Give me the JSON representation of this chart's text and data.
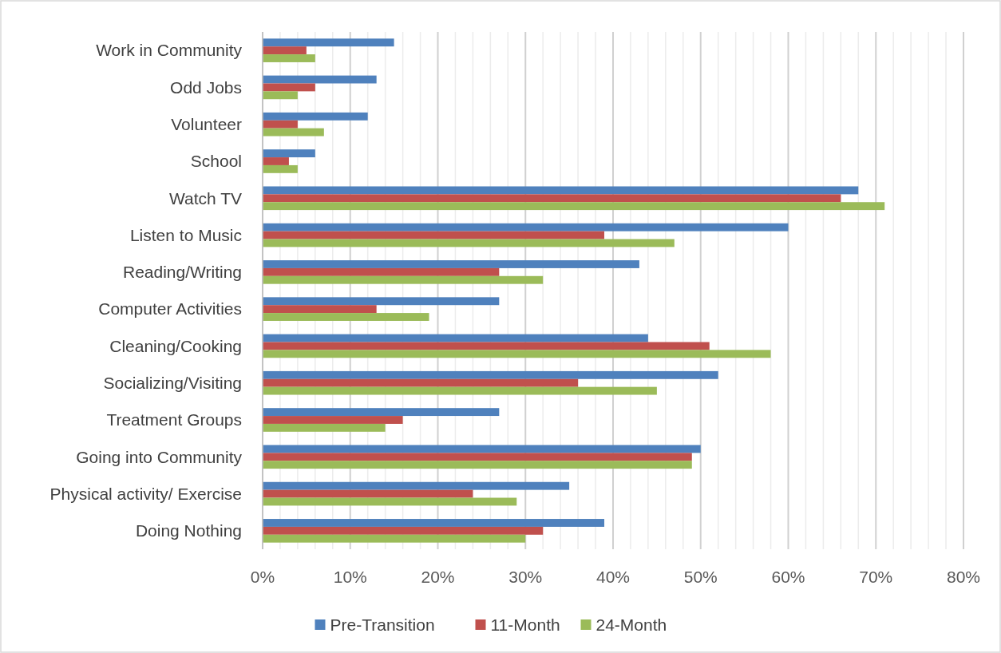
{
  "chart_data": {
    "type": "bar",
    "orientation": "horizontal",
    "categories": [
      "Work in Community",
      "Odd Jobs",
      "Volunteer",
      "School",
      "Watch TV",
      "Listen to Music",
      "Reading/Writing",
      "Computer Activities",
      "Cleaning/Cooking",
      "Socializing/Visiting",
      "Treatment Groups",
      "Going into Community",
      "Physical activity/ Exercise",
      "Doing Nothing"
    ],
    "series": [
      {
        "name": "Pre-Transition",
        "color": "#4f81bd",
        "values": [
          15,
          13,
          12,
          6,
          68,
          60,
          43,
          27,
          44,
          52,
          27,
          50,
          35,
          39
        ]
      },
      {
        "name": "11-Month",
        "color": "#c0504d",
        "values": [
          5,
          6,
          4,
          3,
          66,
          39,
          27,
          13,
          51,
          36,
          16,
          49,
          24,
          32
        ]
      },
      {
        "name": "24-Month",
        "color": "#9bbb59",
        "values": [
          6,
          4,
          7,
          4,
          71,
          47,
          32,
          19,
          58,
          45,
          14,
          49,
          29,
          30
        ]
      }
    ],
    "xlim": [
      0,
      80
    ],
    "xticks": [
      {
        "value": 0,
        "label": "0%"
      },
      {
        "value": 2,
        "label": null
      },
      {
        "value": 4,
        "label": null
      },
      {
        "value": 6,
        "label": null
      },
      {
        "value": 8,
        "label": null
      },
      {
        "value": 10,
        "label": "10%"
      },
      {
        "value": 12,
        "label": null
      },
      {
        "value": 14,
        "label": null
      },
      {
        "value": 16,
        "label": null
      },
      {
        "value": 18,
        "label": null
      },
      {
        "value": 20,
        "label": "20%"
      },
      {
        "value": 22,
        "label": null
      },
      {
        "value": 24,
        "label": null
      },
      {
        "value": 26,
        "label": null
      },
      {
        "value": 28,
        "label": null
      },
      {
        "value": 30,
        "label": "30%"
      },
      {
        "value": 32,
        "label": null
      },
      {
        "value": 34,
        "label": null
      },
      {
        "value": 36,
        "label": null
      },
      {
        "value": 38,
        "label": null
      },
      {
        "value": 40,
        "label": "40%"
      },
      {
        "value": 42,
        "label": null
      },
      {
        "value": 44,
        "label": null
      },
      {
        "value": 46,
        "label": null
      },
      {
        "value": 48,
        "label": null
      },
      {
        "value": 50,
        "label": "50%"
      },
      {
        "value": 52,
        "label": null
      },
      {
        "value": 54,
        "label": null
      },
      {
        "value": 56,
        "label": null
      },
      {
        "value": 58,
        "label": null
      },
      {
        "value": 60,
        "label": "60%"
      },
      {
        "value": 62,
        "label": null
      },
      {
        "value": 64,
        "label": null
      },
      {
        "value": 66,
        "label": null
      },
      {
        "value": 68,
        "label": null
      },
      {
        "value": 70,
        "label": "70%"
      },
      {
        "value": 72,
        "label": null
      },
      {
        "value": 74,
        "label": null
      },
      {
        "value": 76,
        "label": null
      },
      {
        "value": 78,
        "label": null
      },
      {
        "value": 80,
        "label": "80%"
      }
    ],
    "grid": "x",
    "legend": "bottom"
  }
}
